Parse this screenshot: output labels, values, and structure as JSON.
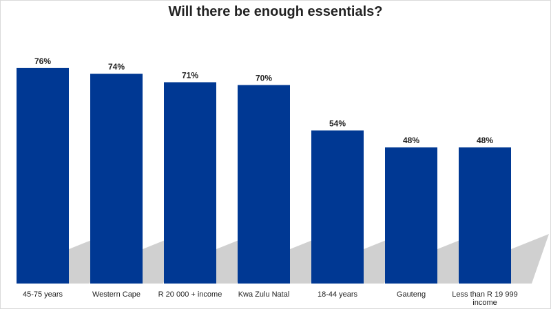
{
  "chart_data": {
    "type": "bar",
    "title": "Will there be enough essentials?",
    "xlabel": "",
    "ylabel": "",
    "categories": [
      "45-75 years",
      "Western Cape",
      "R 20 000 + income",
      "Kwa Zulu Natal",
      "18-44 years",
      "Gauteng",
      "Less than R 19 999 income"
    ],
    "values": [
      76,
      74,
      71,
      70,
      54,
      48,
      48
    ],
    "value_labels": [
      "76%",
      "74%",
      "71%",
      "70%",
      "54%",
      "48%",
      "48%"
    ],
    "ylim": [
      0,
      100
    ],
    "grid": false,
    "legend": "none",
    "bar_color": "#003893",
    "shadow_color": "#c8c8c8"
  }
}
